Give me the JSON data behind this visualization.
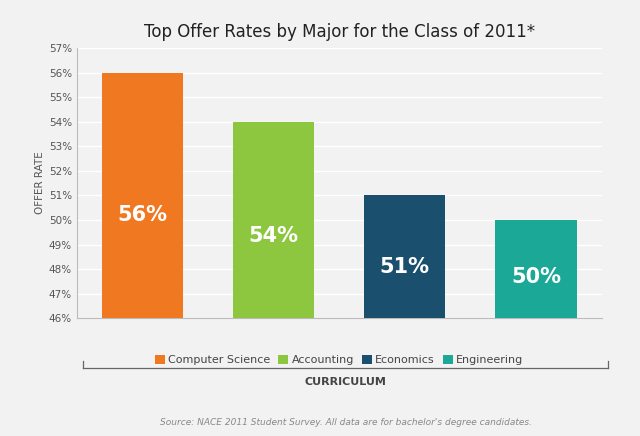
{
  "title": "Top Offer Rates by Major for the Class of 2011*",
  "categories": [
    "Computer Science",
    "Accounting",
    "Economics",
    "Engineering"
  ],
  "values": [
    56,
    54,
    51,
    50
  ],
  "bar_colors": [
    "#F07820",
    "#8DC63F",
    "#1A4F6E",
    "#1BA896"
  ],
  "bar_labels": [
    "56%",
    "54%",
    "51%",
    "50%"
  ],
  "ylabel": "OFFER RATE",
  "xlabel": "CURRICULUM",
  "ylim_min": 46,
  "ylim_max": 57,
  "yticks": [
    46,
    47,
    48,
    49,
    50,
    51,
    52,
    53,
    54,
    55,
    56,
    57
  ],
  "ytick_labels": [
    "46%",
    "47%",
    "48%",
    "49%",
    "50%",
    "51%",
    "52%",
    "53%",
    "54%",
    "55%",
    "56%",
    "57%"
  ],
  "source_text": "Source: NACE 2011 Student Survey. All data are for bachelor's degree candidates.",
  "background_color": "#f2f2f2",
  "title_fontsize": 12,
  "bar_label_fontsize": 15,
  "ytick_fontsize": 7.5,
  "ylabel_fontsize": 7.5,
  "legend_fontsize": 8,
  "source_fontsize": 6.5
}
